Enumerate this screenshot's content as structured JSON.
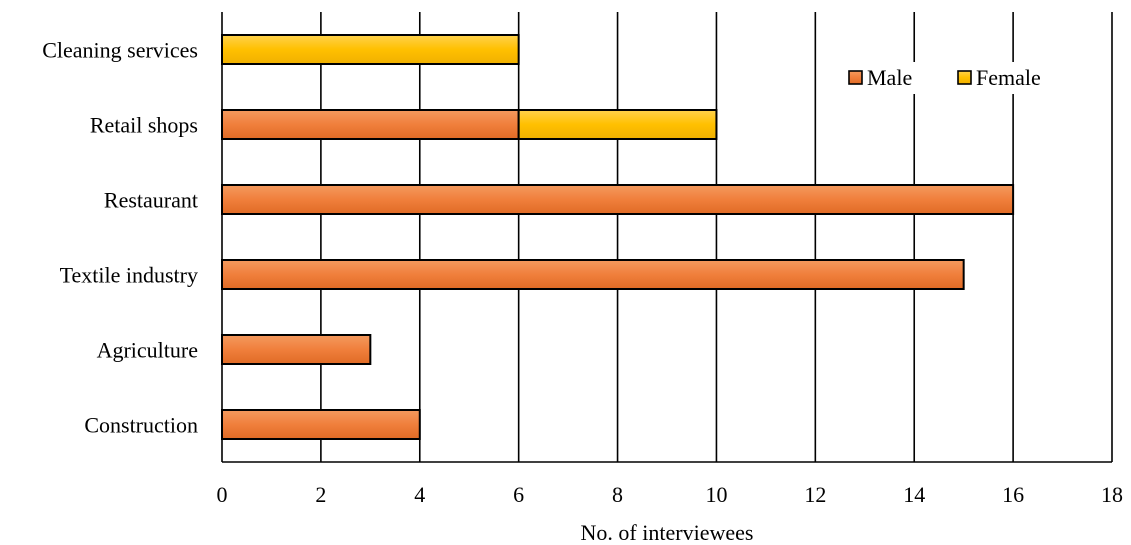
{
  "chart_data": {
    "type": "bar",
    "orientation": "horizontal",
    "stacked": true,
    "categories": [
      "Cleaning services",
      "Retail shops",
      "Restaurant",
      "Textile industry",
      "Agriculture",
      "Construction"
    ],
    "series": [
      {
        "name": "Male",
        "values": [
          0,
          6,
          16,
          15,
          3,
          4
        ],
        "color": "#f07f3c"
      },
      {
        "name": "Female",
        "values": [
          6,
          4,
          0,
          0,
          0,
          0
        ],
        "color": "#ffc000"
      }
    ],
    "xlabel": "No. of interviewees",
    "ylabel": "",
    "title": "",
    "xlim": [
      0,
      18
    ],
    "xticks": [
      0,
      2,
      4,
      6,
      8,
      10,
      12,
      14,
      16,
      18
    ],
    "grid": "vertical",
    "legend_position": "top-right"
  }
}
